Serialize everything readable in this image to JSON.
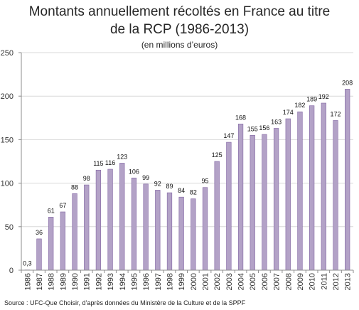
{
  "chart_data": {
    "type": "bar",
    "title_line1": "Montants annuellement récoltés en France au titre",
    "title_line2": "de la RCP (1986-2013)",
    "subtitle": "(en millions d’euros)",
    "categories": [
      "1986",
      "1987",
      "1988",
      "1989",
      "1990",
      "1991",
      "1992",
      "1993",
      "1994",
      "1995",
      "1996",
      "1997",
      "1998",
      "1999",
      "2000",
      "2001",
      "2002",
      "2003",
      "2004",
      "2005",
      "2006",
      "2007",
      "2008",
      "2009",
      "2010",
      "2011",
      "2012",
      "2013"
    ],
    "values": [
      0.3,
      36,
      61,
      67,
      88,
      98,
      115,
      116,
      123,
      106,
      99,
      92,
      89,
      84,
      82,
      95,
      125,
      147,
      168,
      155,
      156,
      163,
      174,
      182,
      189,
      192,
      172,
      208
    ],
    "value_labels": [
      "0,3",
      "36",
      "61",
      "67",
      "88",
      "98",
      "115",
      "116",
      "123",
      "106",
      "99",
      "92",
      "89",
      "84",
      "82",
      "95",
      "125",
      "147",
      "168",
      "155",
      "156",
      "163",
      "174",
      "182",
      "189",
      "192",
      "172",
      "208"
    ],
    "ylim": [
      0,
      250
    ],
    "yticks": [
      0,
      50,
      100,
      150,
      200,
      250
    ],
    "grid": true,
    "bar_color": "#b3a2c7",
    "bar_edge_color": "#8064a2"
  },
  "source": "Source : UFC-Que Choisir, d’après données du Ministère de la Culture et de la SPPF"
}
